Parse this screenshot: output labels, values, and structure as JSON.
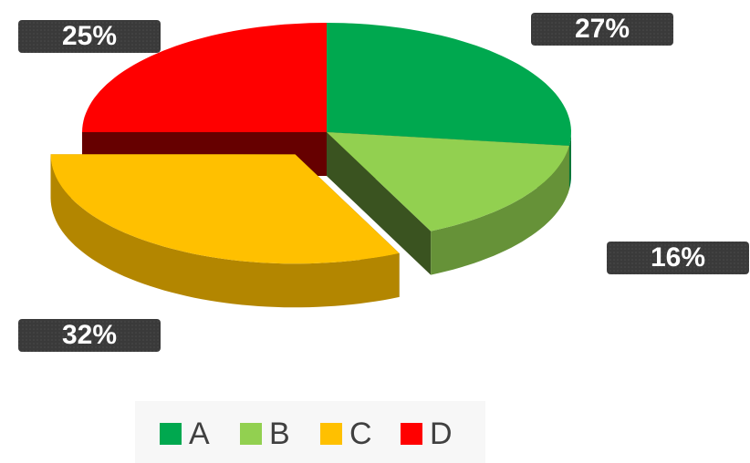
{
  "chart_data": {
    "type": "pie",
    "categories": [
      "A",
      "B",
      "C",
      "D"
    ],
    "values": [
      27,
      16,
      32,
      25
    ],
    "value_labels": [
      "27%",
      "16%",
      "32%",
      "25%"
    ],
    "colors": [
      "#00a84f",
      "#92d050",
      "#ffc000",
      "#ff0000"
    ],
    "legend": "bottom"
  }
}
